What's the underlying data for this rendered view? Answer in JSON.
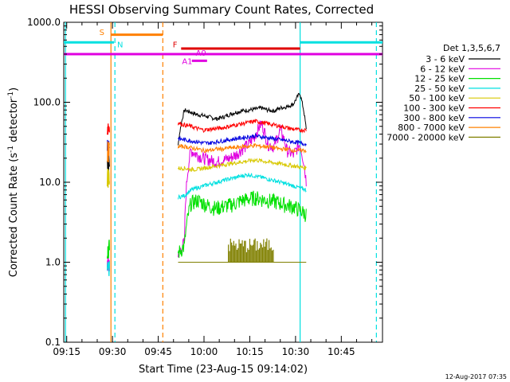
{
  "chart_data": {
    "type": "line",
    "title": "HESSI Observing Summary Count Rates, Corrected",
    "xlabel": "Start Time (23-Aug-15 09:14:02)",
    "ylabel": "Corrected Count Rate (s",
    "ylabel_sup1": "-1",
    "ylabel_mid": " detector",
    "ylabel_sup2": "-1",
    "ylabel_end": ")",
    "footer": "12-Aug-2017 07:35",
    "y_scale": "log",
    "ylim": [
      0.1,
      1000
    ],
    "xlim_minutes": [
      9.25,
      9.9
    ],
    "x_ticks": [
      {
        "label": "09:15",
        "t": 555
      },
      {
        "label": "09:30",
        "t": 570
      },
      {
        "label": "09:45",
        "t": 585
      },
      {
        "label": "10:00",
        "t": 600
      },
      {
        "label": "10:15",
        "t": 615
      },
      {
        "label": "10:30",
        "t": 630
      },
      {
        "label": "10:45",
        "t": 645
      }
    ],
    "y_ticks": [
      {
        "label": "0.1",
        "v": 0.1
      },
      {
        "label": "1.0",
        "v": 1
      },
      {
        "label": "10.0",
        "v": 10
      },
      {
        "label": "100.0",
        "v": 100
      },
      {
        "label": "1000.0",
        "v": 1000
      }
    ],
    "x_range_min": [
      554.03,
      658.5
    ],
    "legend": {
      "title": "Det 1,3,5,6,7",
      "placement": "right",
      "entries": [
        {
          "label": "3 - 6 keV",
          "color": "#000000"
        },
        {
          "label": "6 - 12 keV",
          "color": "#e000e0"
        },
        {
          "label": "12 - 25 keV",
          "color": "#00e000"
        },
        {
          "label": "25 - 50 keV",
          "color": "#00e0e0"
        },
        {
          "label": "50 - 100 keV",
          "color": "#d8c800"
        },
        {
          "label": "100 - 300 keV",
          "color": "#ff0000"
        },
        {
          "label": "300 - 800 keV",
          "color": "#0000e0"
        },
        {
          "label": "800 - 7000 keV",
          "color": "#ff8000"
        },
        {
          "label": "7000 - 20000 keV",
          "color": "#808000"
        }
      ]
    },
    "segments": [
      {
        "t_start": 568.3,
        "t_end": 569.0
      },
      {
        "t_start": 591.5,
        "t_end": 633.5
      }
    ],
    "series": [
      {
        "name": "3 - 6 keV",
        "color": "#000000",
        "early": 18,
        "values": [
          28,
          80,
          75,
          70,
          68,
          65,
          62,
          65,
          70,
          75,
          78,
          80,
          82,
          85,
          80,
          78,
          85,
          88,
          95,
          130,
          45
        ]
      },
      {
        "name": "6 - 12 keV",
        "color": "#e000e0",
        "early": 1.0,
        "values": [
          1.2,
          1.8,
          25,
          22,
          20,
          19,
          18,
          19,
          20,
          22,
          26,
          30,
          38,
          55,
          30,
          28,
          45,
          25,
          22,
          30,
          10
        ]
      },
      {
        "name": "12 - 25 keV",
        "color": "#00e000",
        "early": 1.5,
        "values": [
          1.3,
          1.6,
          5.5,
          6,
          5.5,
          5,
          4.8,
          5,
          5.2,
          5.5,
          6,
          6.2,
          6.5,
          6.2,
          6,
          5.8,
          5.5,
          5.2,
          5,
          4.5,
          4
        ]
      },
      {
        "name": "25 - 50 keV",
        "color": "#00e0e0",
        "early": 0.8,
        "values": [
          6.5,
          6.8,
          8,
          8.5,
          9,
          9.5,
          10,
          10.5,
          11,
          11.5,
          12,
          12.5,
          12,
          11.5,
          11,
          10.5,
          10,
          9.5,
          9,
          8.5,
          8
        ]
      },
      {
        "name": "50 - 100 keV",
        "color": "#d8c800",
        "early": 12,
        "values": [
          15,
          15,
          14.5,
          14.5,
          15,
          15.5,
          16,
          16.5,
          17,
          17.5,
          18,
          18.5,
          19,
          18.5,
          18,
          17.5,
          17,
          16.5,
          16,
          15.5,
          15
        ]
      },
      {
        "name": "100 - 300 keV",
        "color": "#ff0000",
        "early": 50,
        "values": [
          55,
          52,
          50,
          47,
          45,
          46,
          47,
          48,
          50,
          52,
          54,
          56,
          58,
          56,
          54,
          52,
          50,
          48,
          46,
          45,
          45
        ]
      },
      {
        "name": "300 - 800 keV",
        "color": "#0000e0",
        "early": 30,
        "values": [
          35,
          34,
          33,
          32,
          31,
          31,
          32,
          33,
          34,
          35,
          36,
          37,
          38,
          37,
          36,
          35,
          34,
          33,
          32,
          31,
          30
        ]
      },
      {
        "name": "800 - 7000 keV",
        "color": "#ff8000",
        "early": 25,
        "values": [
          28,
          28,
          27,
          26,
          25,
          25,
          26,
          26,
          27,
          27,
          28,
          28,
          29,
          28,
          28,
          27,
          26,
          26,
          25,
          25,
          25
        ]
      },
      {
        "name": "7000 - 20000 keV",
        "color": "#808000",
        "early": null,
        "values": [
          1,
          1,
          1,
          1,
          1,
          1,
          1,
          1,
          1,
          1,
          1,
          1,
          1,
          1,
          1,
          1,
          1,
          1,
          1,
          1,
          1
        ]
      }
    ],
    "burst_7000": {
      "t_start": 608,
      "t_end": 623,
      "high": 2.0
    },
    "flags": [
      {
        "label": "S",
        "color": "#ff8000",
        "t_start": 569.5,
        "t_end": 586.5,
        "v": 700
      },
      {
        "label": "N",
        "color": "#00e0e0",
        "t_start": 554.03,
        "t_end": 570.5,
        "v": 560
      },
      {
        "label": "F",
        "color": "#e00000",
        "t_start": 592.5,
        "t_end": 631.5,
        "v": 470
      },
      {
        "label": "A0",
        "color": "#e000e0",
        "t_start": 554.03,
        "t_end": 658.5,
        "v": 400
      },
      {
        "label": "A1",
        "color": "#e000e0",
        "t_start": 596,
        "t_end": 601,
        "v": 330
      }
    ],
    "flag_N2": {
      "t_start": 631.5,
      "t_end": 658.5,
      "v": 560
    },
    "vlines": [
      {
        "t": 554.6,
        "color": "#00e0e0",
        "style": "solid"
      },
      {
        "t": 569.5,
        "color": "#ff8000",
        "style": "solid"
      },
      {
        "t": 570.8,
        "color": "#00e0e0",
        "style": "dashed"
      },
      {
        "t": 586.5,
        "color": "#ff8000",
        "style": "dashed"
      },
      {
        "t": 631.5,
        "color": "#00e0e0",
        "style": "solid"
      },
      {
        "t": 656.5,
        "color": "#00e0e0",
        "style": "dashed"
      }
    ]
  }
}
